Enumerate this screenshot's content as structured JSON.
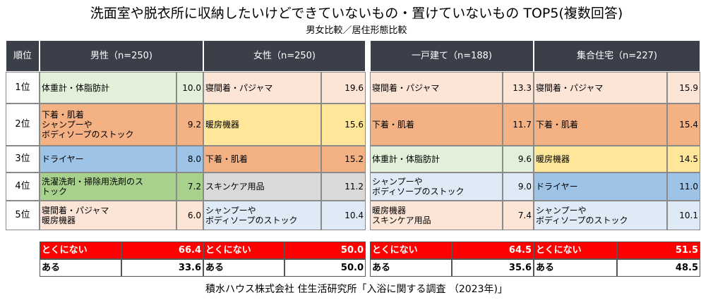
{
  "header": {
    "title": "洗面室や脱衣所に収納したいけどできていないもの・置けていないもの TOP5(複数回答)",
    "subtitle": "男女比較／居住形態比較"
  },
  "table": {
    "rank_header": "順位",
    "ranks": [
      "1位",
      "2位",
      "3位",
      "4位",
      "5位"
    ],
    "groups": [
      {
        "header": "男性（n=250)",
        "rows": [
          {
            "label": "体重計・体脂肪計",
            "value": "10.0",
            "color": "#e2f0d9"
          },
          {
            "label": "下着・肌着\nシャンプーや\nボディソープのストック",
            "value": "9.2",
            "color": "#f4b183"
          },
          {
            "label": "ドライヤー",
            "value": "8.0",
            "color": "#9dc3e6"
          },
          {
            "label": "洗濯洗剤・掃除用洗剤のス\nトック",
            "value": "7.2",
            "color": "#a9d18e"
          },
          {
            "label": "寝間着・パジャマ\n暖房機器",
            "value": "6.0",
            "color": "#fce4d6"
          }
        ],
        "summary": [
          {
            "label": "とくにない",
            "value": "66.4"
          },
          {
            "label": "ある",
            "value": "33.6"
          }
        ]
      },
      {
        "header": "女性（n=250)",
        "rows": [
          {
            "label": "寝間着・パジャマ",
            "value": "19.6",
            "color": "#fce4d6"
          },
          {
            "label": "暖房機器",
            "value": "15.6",
            "color": "#ffe699"
          },
          {
            "label": "下着・肌着",
            "value": "15.2",
            "color": "#f4b183"
          },
          {
            "label": "スキンケア用品",
            "value": "11.2",
            "color": "#d9d9d9"
          },
          {
            "label": "シャンプーや\nボディソープのストック",
            "value": "10.4",
            "color": "#deebf7"
          }
        ],
        "summary": [
          {
            "label": "とくにない",
            "value": "50.0"
          },
          {
            "label": "ある",
            "value": "50.0"
          }
        ]
      },
      {
        "header": "一戸建て（n=188)",
        "rows": [
          {
            "label": "寝間着・パジャマ",
            "value": "13.3",
            "color": "#fce4d6"
          },
          {
            "label": "下着・肌着",
            "value": "11.7",
            "color": "#f4b183"
          },
          {
            "label": "体重計・体脂肪計",
            "value": "9.6",
            "color": "#e2f0d9"
          },
          {
            "label": "シャンプーや\nボディソープのストック",
            "value": "9.0",
            "color": "#deebf7"
          },
          {
            "label": "暖房機器\nスキンケア用品",
            "value": "7.4",
            "color": "#fce4d6"
          }
        ],
        "summary": [
          {
            "label": "とくにない",
            "value": "64.5"
          },
          {
            "label": "ある",
            "value": "35.6"
          }
        ]
      },
      {
        "header": "集合住宅（n=227)",
        "rows": [
          {
            "label": "寝間着・パジャマ",
            "value": "15.9",
            "color": "#fce4d6"
          },
          {
            "label": "下着・肌着",
            "value": "15.4",
            "color": "#f4b183"
          },
          {
            "label": "暖房機器",
            "value": "14.5",
            "color": "#ffe699"
          },
          {
            "label": "ドライヤー",
            "value": "11.0",
            "color": "#9dc3e6"
          },
          {
            "label": "シャンプーや\nボディソープのストック",
            "value": "10.1",
            "color": "#deebf7"
          }
        ],
        "summary": [
          {
            "label": "とくにない",
            "value": "51.5"
          },
          {
            "label": "ある",
            "value": "48.5"
          }
        ]
      }
    ],
    "summary_colors": [
      "#ff0000",
      "#ffffff"
    ],
    "summary_text_colors": [
      "#ffffff",
      "#000000"
    ]
  },
  "footer": "積水ハウス株式会社 住生活研究所「入浴に関する調査 （2023年)」"
}
